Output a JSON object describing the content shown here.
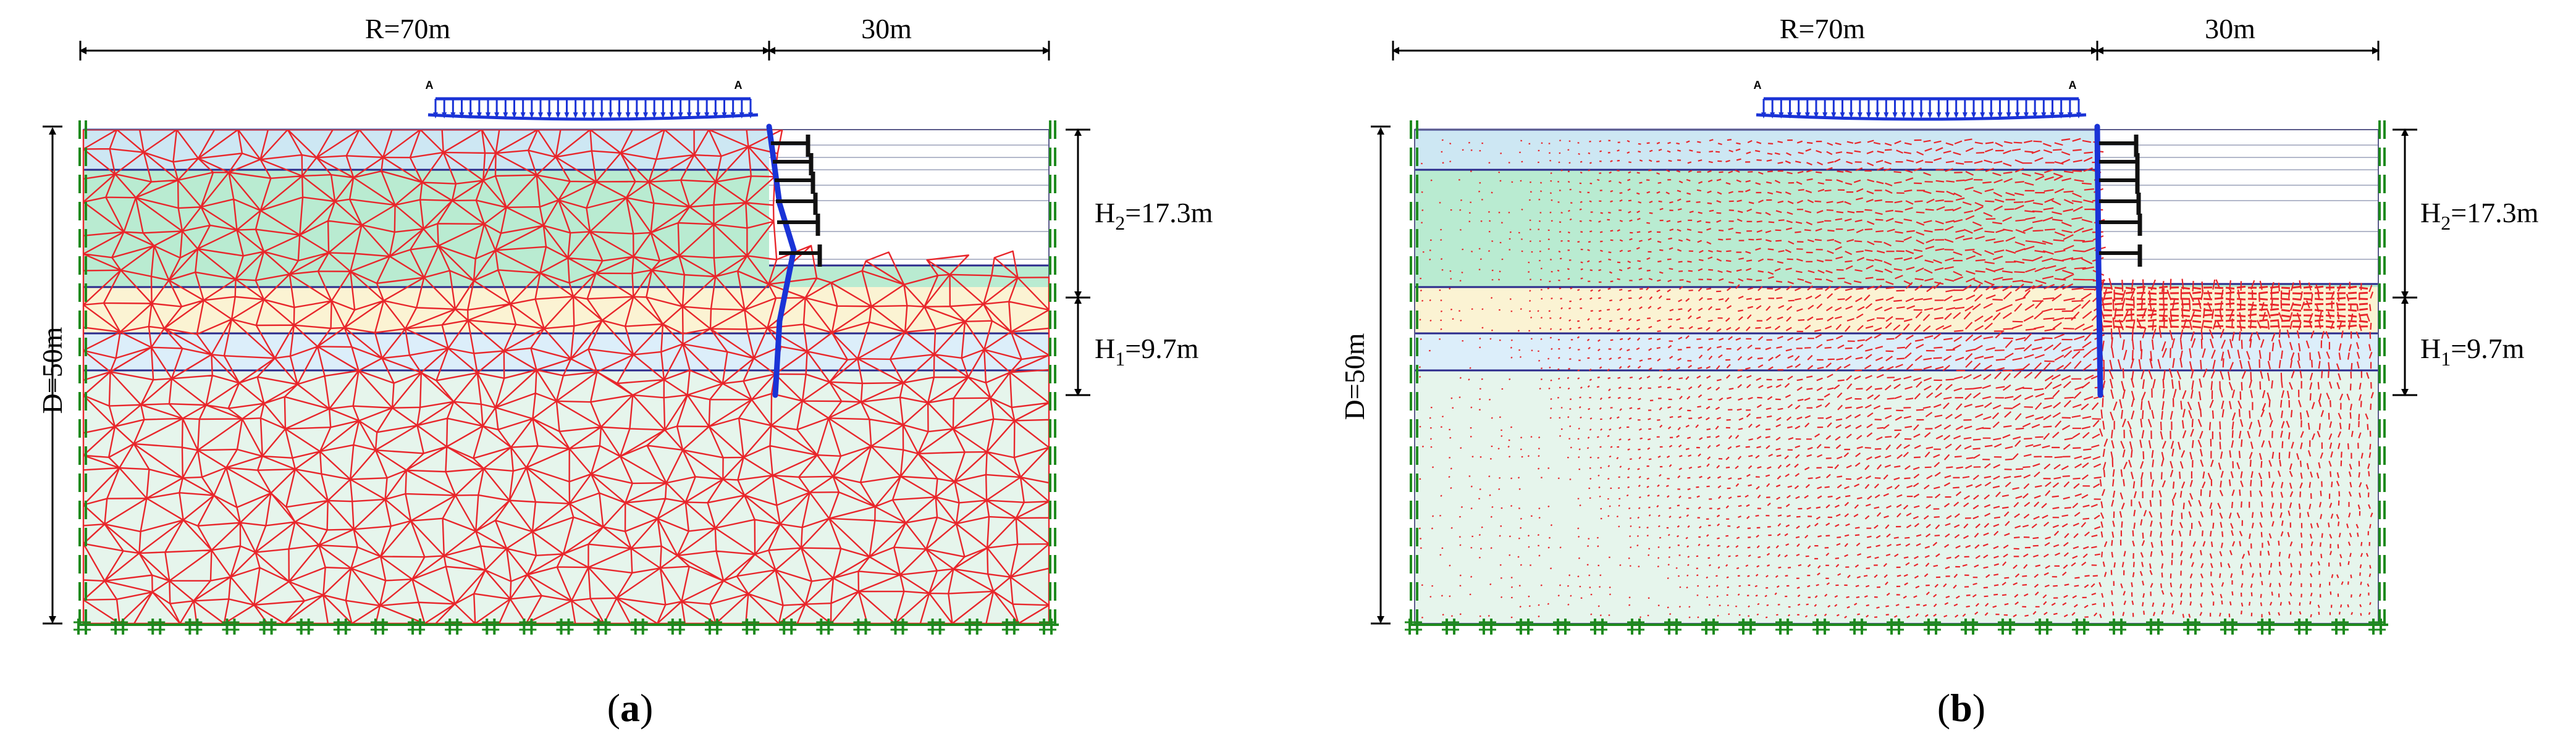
{
  "colors": {
    "mesh": "#e8262b",
    "wall": "#1a33d6",
    "load": "#1a33d6",
    "boundary": "#1e8a1e",
    "layer_top": "#cde7f3",
    "layer_green": "#b9ebd1",
    "layer_cream": "#fbf3d3",
    "layer_blue2": "#dceefa",
    "layer_bottom": "#e6f5ec",
    "layer_line": "#2a2a8c",
    "anchor": "#111111",
    "dim": "#000000"
  },
  "panels": [
    {
      "id": "a",
      "dims": {
        "width_label": "R=70m",
        "excavation_width_label": "30m",
        "depth_label": "D=50m",
        "h2_label": "H2=17.3m",
        "h1_label": "H1=9.7m"
      },
      "load_labels": [
        "A",
        "A"
      ],
      "caption": {
        "open": "(",
        "letter": "a",
        "close": ")"
      },
      "mode": "mesh"
    },
    {
      "id": "b",
      "dims": {
        "width_label": "R=70m",
        "excavation_width_label": "30m",
        "depth_label": "D=50m",
        "h2_label": "H2=17.3m",
        "h1_label": "H1=9.7m"
      },
      "load_labels": [
        "A",
        "A"
      ],
      "caption": {
        "open": "(",
        "letter": "b",
        "close": ")"
      },
      "mode": "vectors"
    }
  ]
}
